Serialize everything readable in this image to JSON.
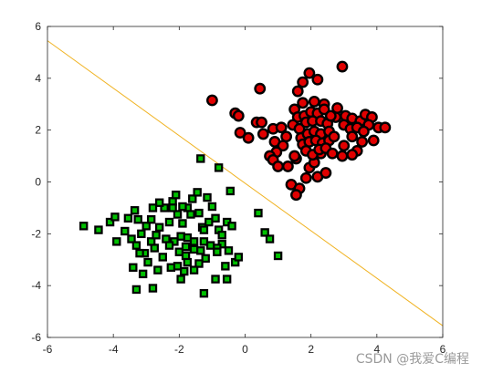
{
  "chart_data": {
    "type": "scatter",
    "xlim": [
      -6,
      6
    ],
    "ylim": [
      -6,
      6
    ],
    "xticks": [
      -6,
      -4,
      -2,
      0,
      2,
      4,
      6
    ],
    "yticks": [
      -6,
      -4,
      -2,
      0,
      2,
      4,
      6
    ],
    "grid": false,
    "colors": {
      "red_fill": "#e00000",
      "green_fill": "#00c000",
      "marker_edge": "#000000",
      "line": "#f0b323",
      "axis": "#262626"
    },
    "boundary_line": {
      "x": [
        -6,
        6
      ],
      "y": [
        5.45,
        -5.55
      ]
    },
    "series": [
      {
        "marker": "circle",
        "points": [
          [
            -1,
            3.15
          ],
          [
            0.45,
            3.6
          ],
          [
            -0.3,
            2.65
          ],
          [
            -0.2,
            2.55
          ],
          [
            0.35,
            2.3
          ],
          [
            0.5,
            2.3
          ],
          [
            -0.15,
            1.9
          ],
          [
            0.1,
            1.7
          ],
          [
            0.55,
            1.85
          ],
          [
            0.85,
            2.05
          ],
          [
            1.1,
            2.1
          ],
          [
            1.25,
            1.75
          ],
          [
            0.9,
            1.55
          ],
          [
            1.15,
            1.4
          ],
          [
            0.95,
            1.15
          ],
          [
            0.75,
            1.0
          ],
          [
            0.85,
            0.85
          ],
          [
            1.0,
            0.6
          ],
          [
            1.3,
            0.6
          ],
          [
            1.55,
            0.9
          ],
          [
            1.4,
            -0.1
          ],
          [
            1.65,
            -0.25
          ],
          [
            1.55,
            -0.5
          ],
          [
            1.85,
            0.15
          ],
          [
            1.95,
            0.55
          ],
          [
            2.1,
            0.75
          ],
          [
            2.3,
            1.1
          ],
          [
            1.6,
            3.5
          ],
          [
            1.75,
            3.85
          ],
          [
            1.95,
            4.2
          ],
          [
            2.2,
            3.95
          ],
          [
            2.95,
            4.45
          ],
          [
            1.75,
            3.05
          ],
          [
            2.1,
            3.1
          ],
          [
            2.4,
            3.0
          ],
          [
            1.5,
            2.8
          ],
          [
            1.6,
            2.5
          ],
          [
            1.8,
            2.55
          ],
          [
            2.0,
            2.7
          ],
          [
            2.2,
            2.65
          ],
          [
            2.4,
            2.8
          ],
          [
            1.45,
            2.2
          ],
          [
            1.65,
            2.05
          ],
          [
            1.85,
            2.3
          ],
          [
            2.05,
            2.35
          ],
          [
            2.3,
            2.35
          ],
          [
            2.5,
            2.25
          ],
          [
            1.7,
            1.7
          ],
          [
            1.9,
            1.85
          ],
          [
            2.1,
            1.95
          ],
          [
            2.3,
            1.85
          ],
          [
            2.55,
            1.95
          ],
          [
            1.75,
            1.45
          ],
          [
            1.95,
            1.55
          ],
          [
            2.15,
            1.6
          ],
          [
            2.35,
            1.5
          ],
          [
            2.55,
            1.6
          ],
          [
            1.85,
            1.2
          ],
          [
            2.05,
            1.05
          ],
          [
            2.25,
            1.25
          ],
          [
            2.45,
            1.3
          ],
          [
            2.65,
            1.1
          ],
          [
            2.75,
            2.5
          ],
          [
            2.8,
            2.85
          ],
          [
            3.05,
            2.55
          ],
          [
            3.25,
            2.45
          ],
          [
            3.5,
            2.35
          ],
          [
            3.0,
            2.2
          ],
          [
            3.2,
            2.05
          ],
          [
            3.4,
            2.1
          ],
          [
            3.65,
            2.6
          ],
          [
            3.85,
            2.5
          ],
          [
            3.75,
            2.2
          ],
          [
            3.6,
            1.95
          ],
          [
            3.25,
            1.75
          ],
          [
            3.0,
            1.4
          ],
          [
            3.4,
            1.2
          ],
          [
            3.25,
            1.05
          ],
          [
            2.95,
            1.0
          ],
          [
            3.55,
            1.55
          ],
          [
            3.9,
            1.6
          ],
          [
            4.05,
            2.1
          ],
          [
            4.25,
            2.1
          ],
          [
            2.6,
            2.55
          ],
          [
            2.7,
            1.75
          ],
          [
            1.5,
            1.0
          ],
          [
            2.2,
            0.2
          ],
          [
            2.45,
            0.35
          ]
        ]
      },
      {
        "marker": "square",
        "points": [
          [
            -4.9,
            -1.7
          ],
          [
            -4.45,
            -1.85
          ],
          [
            -4.1,
            -1.55
          ],
          [
            -3.95,
            -1.35
          ],
          [
            -3.9,
            -2.3
          ],
          [
            -3.65,
            -1.9
          ],
          [
            -3.55,
            -1.4
          ],
          [
            -3.35,
            -1.1
          ],
          [
            -3.25,
            -1.45
          ],
          [
            -3.45,
            -2.2
          ],
          [
            -3.3,
            -2.45
          ],
          [
            -3.15,
            -2.0
          ],
          [
            -3.0,
            -1.7
          ],
          [
            -2.85,
            -1.45
          ],
          [
            -3.4,
            -3.3
          ],
          [
            -3.3,
            -4.15
          ],
          [
            -3.1,
            -3.55
          ],
          [
            -2.95,
            -3.1
          ],
          [
            -2.75,
            -2.55
          ],
          [
            -2.8,
            -4.1
          ],
          [
            -2.65,
            -3.4
          ],
          [
            -2.5,
            -2.9
          ],
          [
            -2.4,
            -2.2
          ],
          [
            -2.3,
            -1.55
          ],
          [
            -2.45,
            -1.0
          ],
          [
            -2.2,
            -0.75
          ],
          [
            -2.1,
            -0.5
          ],
          [
            -2.05,
            -1.25
          ],
          [
            -1.9,
            -1.6
          ],
          [
            -1.75,
            -1.0
          ],
          [
            -1.6,
            -0.65
          ],
          [
            -1.45,
            -0.4
          ],
          [
            -1.4,
            -1.2
          ],
          [
            -1.3,
            -1.75
          ],
          [
            -1.15,
            -0.6
          ],
          [
            -1.0,
            -0.95
          ],
          [
            -0.9,
            -1.4
          ],
          [
            -0.8,
            -1.85
          ],
          [
            -0.7,
            -2.4
          ],
          [
            -0.85,
            -2.55
          ],
          [
            -1.05,
            -2.45
          ],
          [
            -1.25,
            -2.3
          ],
          [
            -1.55,
            -2.3
          ],
          [
            -1.75,
            -2.15
          ],
          [
            -1.95,
            -2.1
          ],
          [
            -2.15,
            -2.3
          ],
          [
            -2.3,
            -2.45
          ],
          [
            -2.0,
            -2.7
          ],
          [
            -1.8,
            -2.85
          ],
          [
            -1.55,
            -2.6
          ],
          [
            -1.35,
            -2.65
          ],
          [
            -1.2,
            -2.95
          ],
          [
            -1.4,
            -3.15
          ],
          [
            -1.75,
            -3.1
          ],
          [
            -1.85,
            -3.45
          ],
          [
            -2.05,
            -3.25
          ],
          [
            -2.25,
            -3.3
          ],
          [
            -1.95,
            -3.75
          ],
          [
            -1.55,
            -3.4
          ],
          [
            -1.25,
            -4.3
          ],
          [
            -0.9,
            -3.75
          ],
          [
            -0.55,
            -3.75
          ],
          [
            -0.6,
            -3.25
          ],
          [
            -0.3,
            -3.1
          ],
          [
            -0.2,
            -2.9
          ],
          [
            -0.5,
            -2.65
          ],
          [
            -0.7,
            -2.05
          ],
          [
            -0.55,
            -1.55
          ],
          [
            -0.4,
            -1.7
          ],
          [
            -0.45,
            -0.35
          ],
          [
            -0.8,
            0.55
          ],
          [
            -1.35,
            0.9
          ],
          [
            -2.6,
            -0.8
          ],
          [
            -2.8,
            -1.0
          ],
          [
            -2.6,
            -1.75
          ],
          [
            -2.85,
            -2.3
          ],
          [
            -3.05,
            -2.75
          ],
          [
            -3.2,
            -2.75
          ],
          [
            -2.7,
            -2.05
          ],
          [
            0.4,
            -1.2
          ],
          [
            0.6,
            -1.95
          ],
          [
            0.75,
            -2.2
          ],
          [
            1.0,
            -2.85
          ],
          [
            -1.1,
            -1.55
          ],
          [
            -1.65,
            -1.25
          ],
          [
            -1.9,
            -0.95
          ],
          [
            -2.2,
            -1.0
          ],
          [
            -1.8,
            -2.5
          ],
          [
            -1.25,
            -1.85
          ],
          [
            -0.85,
            -2.7
          ]
        ]
      }
    ]
  },
  "watermark": "CSDN @我爱C编程"
}
